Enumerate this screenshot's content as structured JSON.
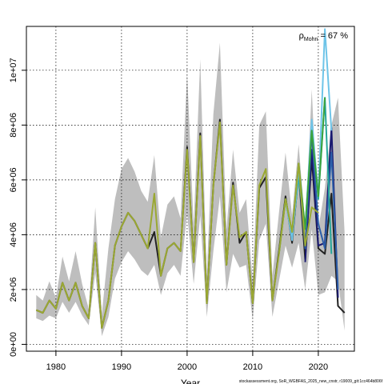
{
  "chart_data": {
    "type": "line",
    "xlabel": "Year",
    "ylabel": "",
    "xlim": [
      1975.5,
      2025.5
    ],
    "ylim": [
      -250000,
      11600000
    ],
    "x_ticks": [
      1980,
      1990,
      2000,
      2010,
      2020
    ],
    "y_ticks": [
      0,
      2000000,
      4000000,
      6000000,
      8000000,
      10000000
    ],
    "x_tick_labels": [
      "1980",
      "1990",
      "2000",
      "2010",
      "2020"
    ],
    "y_tick_labels": [
      "0e+00",
      "2e+06",
      "4e+06",
      "6e+06",
      "8e+06",
      "1e+07"
    ],
    "grid": "dotted",
    "annotation": {
      "rho_symbol": "ρ",
      "rho_subscript": "Mohn",
      "rho_value": " = 67 %"
    },
    "footer": "stockassessment.org, SoR_WGBFAS_2025_new_cnstr, r19009_git:1cc464b806f",
    "confidence_band": {
      "color": "#bebebe",
      "x": [
        1977,
        1978,
        1979,
        1980,
        1981,
        1982,
        1983,
        1984,
        1985,
        1986,
        1987,
        1988,
        1989,
        1990,
        1991,
        1992,
        1993,
        1994,
        1995,
        1996,
        1997,
        1998,
        1999,
        2000,
        2001,
        2002,
        2003,
        2004,
        2005,
        2006,
        2007,
        2008,
        2009,
        2010,
        2011,
        2012,
        2013,
        2014,
        2015,
        2016,
        2017,
        2018,
        2019,
        2020,
        2021,
        2022,
        2023,
        2024
      ],
      "lower": [
        950000,
        850000,
        1050000,
        950000,
        1550000,
        1150000,
        1550000,
        1050000,
        700000,
        2600000,
        300000,
        1000000,
        2400000,
        3000000,
        3400000,
        3100000,
        2700000,
        2500000,
        2900000,
        1800000,
        2600000,
        2900000,
        2500000,
        4800000,
        2200000,
        4700000,
        1000000,
        3400000,
        5400000,
        1900000,
        3300000,
        2800000,
        2900000,
        900000,
        3800000,
        4400000,
        1000000,
        2300000,
        3600000,
        2800000,
        3700000,
        2000000,
        4200000,
        1800000,
        1900000,
        2500000,
        2300000,
        500000
      ],
      "upper": [
        1800000,
        1600000,
        2300000,
        1700000,
        3200000,
        2300000,
        3400000,
        2200000,
        1300000,
        5000000,
        1100000,
        3500000,
        5300000,
        6400000,
        6800000,
        6300000,
        5600000,
        5200000,
        6900000,
        3900000,
        5100000,
        5400000,
        4600000,
        9900000,
        4300000,
        10400000,
        2500000,
        8400000,
        11000000,
        4200000,
        7100000,
        4800000,
        5300000,
        2300000,
        8000000,
        8500000,
        2500000,
        4800000,
        7000000,
        4700000,
        7300000,
        4300000,
        9300000,
        4200000,
        5700000,
        8000000,
        9000000,
        4100000
      ]
    },
    "series": [
      {
        "color": "#222222",
        "x": [
          1977,
          1978,
          1979,
          1980,
          1981,
          1982,
          1983,
          1984,
          1985,
          1986,
          1987,
          1988,
          1989,
          1990,
          1991,
          1992,
          1993,
          1994,
          1995,
          1996,
          1997,
          1998,
          1999,
          2000,
          2001,
          2002,
          2003,
          2004,
          2005,
          2006,
          2007,
          2008,
          2009,
          2010,
          2011,
          2012,
          2013,
          2014,
          2015,
          2016,
          2017,
          2018,
          2019,
          2020,
          2021,
          2022,
          2023,
          2024
        ],
        "y": [
          1250000,
          1150000,
          1600000,
          1300000,
          2250000,
          1600000,
          2250000,
          1400000,
          950000,
          3700000,
          600000,
          1600000,
          3600000,
          4300000,
          4800000,
          4500000,
          4000000,
          3500000,
          4100000,
          2500000,
          3500000,
          3700000,
          3400000,
          7200000,
          3000000,
          7700000,
          1500000,
          5800000,
          8200000,
          2900000,
          5900000,
          3700000,
          4100000,
          1500000,
          5700000,
          6100000,
          1600000,
          3400000,
          5400000,
          3700000,
          6300000,
          3100000,
          6800000,
          3500000,
          3300000,
          5500000,
          1400000,
          1150000
        ]
      },
      {
        "color": "#191970",
        "x": [
          2018,
          2019,
          2020,
          2021,
          2022,
          2023
        ],
        "y": [
          3000000,
          7100000,
          3600000,
          3700000,
          7900000,
          1700000
        ]
      },
      {
        "color": "#2c5ea8",
        "x": [
          2017,
          2018,
          2019,
          2020,
          2021,
          2022,
          2023
        ],
        "y": [
          6400000,
          3500000,
          7700000,
          4400000,
          3500000,
          7000000,
          2000000
        ]
      },
      {
        "color": "#26a69a",
        "x": [
          2016,
          2017,
          2018,
          2019,
          2020,
          2021,
          2022
        ],
        "y": [
          4000000,
          6100000,
          4200000,
          8000000,
          5300000,
          9000000,
          3300000
        ]
      },
      {
        "color": "#6ec4e8",
        "x": [
          2015,
          2016,
          2017,
          2018,
          2019,
          2020,
          2021,
          2022
        ],
        "y": [
          5300000,
          3800000,
          6400000,
          4200000,
          8200000,
          5400000,
          11500000,
          7800000
        ]
      },
      {
        "color": "#3aa33a",
        "x": [
          2014,
          2015,
          2016,
          2017,
          2018,
          2019,
          2020,
          2021
        ],
        "y": [
          3300000,
          5300000,
          4100000,
          6600000,
          4200000,
          7800000,
          5400000,
          9000000
        ]
      },
      {
        "color": "#9aa832",
        "x": [
          1977,
          1978,
          1979,
          1980,
          1981,
          1982,
          1983,
          1984,
          1985,
          1986,
          1987,
          1988,
          1989,
          1990,
          1991,
          1992,
          1993,
          1994,
          1995,
          1996,
          1997,
          1998,
          1999,
          2000,
          2001,
          2002,
          2003,
          2004,
          2005,
          2006,
          2007,
          2008,
          2009,
          2010,
          2011,
          2012,
          2013,
          2014,
          2015,
          2016,
          2017,
          2018,
          2019,
          2020
        ],
        "y": [
          1250000,
          1150000,
          1600000,
          1300000,
          2250000,
          1600000,
          2250000,
          1400000,
          950000,
          3700000,
          600000,
          1600000,
          3600000,
          4300000,
          4800000,
          4500000,
          4000000,
          3500000,
          5500000,
          2500000,
          3500000,
          3700000,
          3400000,
          7100000,
          3000000,
          7600000,
          1500000,
          5800000,
          8100000,
          2900000,
          5800000,
          3900000,
          4100000,
          1500000,
          5800000,
          6400000,
          1600000,
          3300000,
          5300000,
          4100000,
          6600000,
          3600000,
          5000000,
          4800000
        ]
      }
    ]
  }
}
